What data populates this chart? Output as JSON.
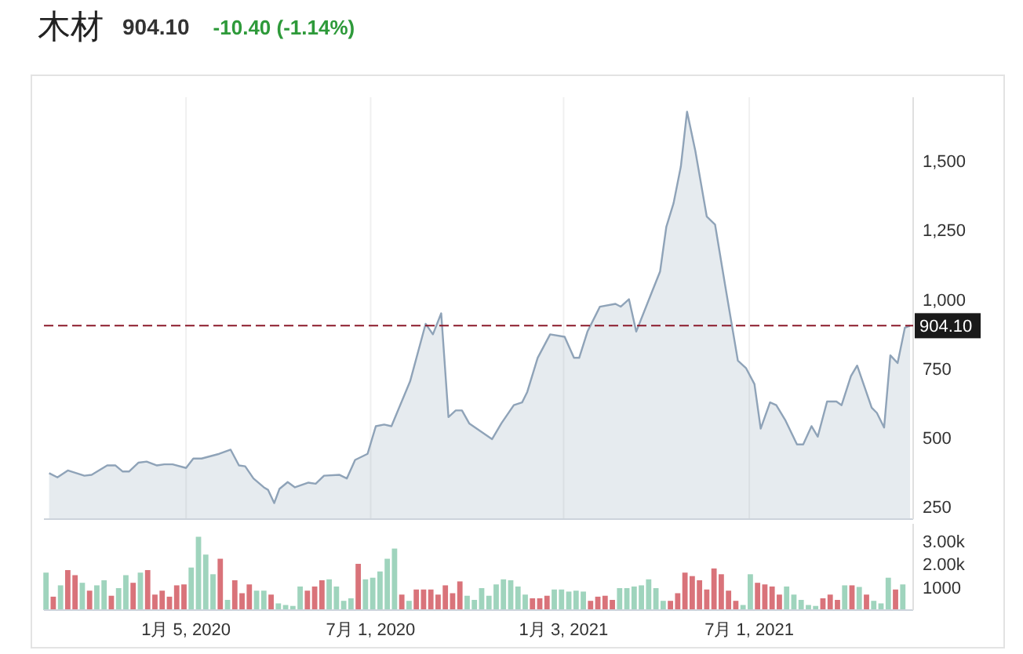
{
  "chart_data": [
    {
      "type": "area",
      "title": "木材",
      "subtitle": "904.10",
      "annotations": [
        "-10.40 (-1.14%)"
      ],
      "x": [
        "2019-08-26",
        "2019-09-03",
        "2019-09-13",
        "2019-09-29",
        "2019-10-06",
        "2019-10-21",
        "2019-10-29",
        "2019-11-05",
        "2019-11-11",
        "2019-11-20",
        "2019-11-28",
        "2019-12-08",
        "2019-12-15",
        "2019-12-23",
        "2020-01-05",
        "2020-01-12",
        "2020-01-20",
        "2020-02-06",
        "2020-02-17",
        "2020-02-25",
        "2020-03-02",
        "2020-03-10",
        "2020-03-20",
        "2020-03-24",
        "2020-03-30",
        "2020-04-04",
        "2020-04-12",
        "2020-04-19",
        "2020-05-02",
        "2020-05-09",
        "2020-05-17",
        "2020-06-01",
        "2020-06-08",
        "2020-06-16",
        "2020-06-28",
        "2020-07-06",
        "2020-07-14",
        "2020-07-21",
        "2020-08-08",
        "2020-08-23",
        "2020-08-30",
        "2020-09-07",
        "2020-09-14",
        "2020-09-21",
        "2020-09-27",
        "2020-10-04",
        "2020-10-26",
        "2020-11-04",
        "2020-11-16",
        "2020-11-24",
        "2020-11-29",
        "2020-12-09",
        "2020-12-21",
        "2021-01-04",
        "2021-01-13",
        "2021-01-18",
        "2021-01-26",
        "2021-02-07",
        "2021-02-22",
        "2021-02-27",
        "2021-03-07",
        "2021-03-14",
        "2021-03-29",
        "2021-04-06",
        "2021-04-12",
        "2021-04-19",
        "2021-04-26",
        "2021-05-02",
        "2021-05-10",
        "2021-05-21",
        "2021-05-29",
        "2021-06-08",
        "2021-06-20",
        "2021-06-28",
        "2021-07-06",
        "2021-07-12",
        "2021-07-21",
        "2021-07-27",
        "2021-08-05",
        "2021-08-16",
        "2021-08-22",
        "2021-08-30",
        "2021-09-05",
        "2021-09-14",
        "2021-09-23",
        "2021-09-28",
        "2021-10-07",
        "2021-10-13",
        "2021-10-27",
        "2021-11-01",
        "2021-11-08",
        "2021-11-14",
        "2021-11-21",
        "2021-11-28",
        "2021-12-03"
      ],
      "values": [
        371,
        356,
        381,
        362,
        365,
        399,
        399,
        377,
        377,
        409,
        413,
        399,
        403,
        403,
        390,
        424,
        424,
        441,
        456,
        399,
        396,
        352,
        320,
        311,
        263,
        314,
        339,
        320,
        337,
        333,
        362,
        365,
        352,
        419,
        441,
        541,
        547,
        541,
        703,
        911,
        873,
        949,
        574,
        598,
        598,
        551,
        494,
        551,
        617,
        627,
        665,
        788,
        873,
        864,
        788,
        788,
        883,
        973,
        983,
        973,
        1000,
        883,
        1025,
        1100,
        1261,
        1347,
        1479,
        1678,
        1536,
        1299,
        1270,
        1044,
        778,
        750,
        693,
        532,
        627,
        617,
        561,
        475,
        475,
        541,
        503,
        630,
        630,
        617,
        722,
        760,
        608,
        589,
        536,
        797,
        769,
        897,
        904
      ],
      "color": "#8fa3b8",
      "xlim": [
        "2019-08-21",
        "2021-12-06"
      ],
      "xticks": [
        {
          "value": "2020-01-05",
          "label": null
        },
        {
          "value": "2020-07-01",
          "label": null
        },
        {
          "value": "2021-01-03",
          "label": null
        },
        {
          "value": "2021-07-01",
          "label": null
        }
      ],
      "ylim": [
        205,
        1730
      ],
      "yticks": [
        250,
        500,
        750,
        {
          "value": 1000,
          "label": "1,000"
        },
        {
          "value": 1250,
          "label": "1,250"
        },
        {
          "value": 1500,
          "label": "1,500"
        }
      ],
      "ref_lines": [
        {
          "axis": "y",
          "value": 904.1,
          "label": "904.10",
          "color": "#8b1a2b",
          "line_style": "dashed"
        }
      ],
      "grid": "x",
      "tick_labels": "y"
    },
    {
      "type": "bar",
      "x": [
        "2019-08-23",
        "2019-08-30",
        "2019-09-06",
        "2019-09-13",
        "2019-09-20",
        "2019-09-27",
        "2019-10-04",
        "2019-10-11",
        "2019-10-18",
        "2019-10-25",
        "2019-11-01",
        "2019-11-08",
        "2019-11-15",
        "2019-11-22",
        "2019-11-29",
        "2019-12-06",
        "2019-12-13",
        "2019-12-20",
        "2019-12-27",
        "2020-01-03",
        "2020-01-10",
        "2020-01-17",
        "2020-01-24",
        "2020-01-31",
        "2020-02-07",
        "2020-02-14",
        "2020-02-21",
        "2020-02-28",
        "2020-03-06",
        "2020-03-13",
        "2020-03-20",
        "2020-03-27",
        "2020-04-03",
        "2020-04-10",
        "2020-04-17",
        "2020-04-24",
        "2020-05-01",
        "2020-05-08",
        "2020-05-15",
        "2020-05-22",
        "2020-05-29",
        "2020-06-05",
        "2020-06-12",
        "2020-06-19",
        "2020-06-26",
        "2020-07-03",
        "2020-07-10",
        "2020-07-17",
        "2020-07-24",
        "2020-07-31",
        "2020-08-07",
        "2020-08-14",
        "2020-08-21",
        "2020-08-28",
        "2020-09-04",
        "2020-09-11",
        "2020-09-18",
        "2020-09-25",
        "2020-10-02",
        "2020-10-09",
        "2020-10-16",
        "2020-10-23",
        "2020-10-30",
        "2020-11-06",
        "2020-11-13",
        "2020-11-20",
        "2020-11-27",
        "2020-12-04",
        "2020-12-11",
        "2020-12-18",
        "2020-12-25",
        "2021-01-01",
        "2021-01-08",
        "2021-01-15",
        "2021-01-22",
        "2021-01-29",
        "2021-02-05",
        "2021-02-12",
        "2021-02-19",
        "2021-02-26",
        "2021-03-05",
        "2021-03-12",
        "2021-03-19",
        "2021-03-26",
        "2021-04-02",
        "2021-04-09",
        "2021-04-16",
        "2021-04-23",
        "2021-04-30",
        "2021-05-07",
        "2021-05-14",
        "2021-05-21",
        "2021-05-28",
        "2021-06-04",
        "2021-06-11",
        "2021-06-18",
        "2021-06-25",
        "2021-07-02",
        "2021-07-09",
        "2021-07-16",
        "2021-07-23",
        "2021-07-30",
        "2021-08-06",
        "2021-08-13",
        "2021-08-20",
        "2021-08-27",
        "2021-09-03",
        "2021-09-10",
        "2021-09-17",
        "2021-09-24",
        "2021-10-01",
        "2021-10-08",
        "2021-10-15",
        "2021-10-22",
        "2021-10-29",
        "2021-11-05",
        "2021-11-12",
        "2021-11-19",
        "2021-11-26"
      ],
      "values": [
        1620,
        580,
        1070,
        1730,
        1510,
        1180,
        840,
        1070,
        1290,
        620,
        950,
        1510,
        1180,
        1620,
        1730,
        670,
        840,
        580,
        1070,
        1110,
        1840,
        3170,
        2400,
        1550,
        2220,
        440,
        1290,
        730,
        1110,
        840,
        840,
        670,
        290,
        220,
        180,
        1020,
        840,
        1020,
        1290,
        1330,
        1020,
        400,
        510,
        2000,
        1330,
        1400,
        1670,
        2220,
        2660,
        670,
        400,
        890,
        890,
        890,
        670,
        1070,
        730,
        1240,
        620,
        440,
        950,
        620,
        1110,
        1330,
        1290,
        1020,
        670,
        510,
        510,
        620,
        890,
        890,
        800,
        840,
        800,
        400,
        580,
        620,
        440,
        950,
        950,
        1020,
        1070,
        1330,
        950,
        400,
        400,
        730,
        1620,
        1470,
        1290,
        890,
        1800,
        1550,
        840,
        400,
        220,
        1550,
        1180,
        1110,
        1020,
        670,
        1020,
        670,
        440,
        220,
        180,
        510,
        670,
        440,
        1070,
        1070,
        1000,
        670,
        400,
        290,
        1400,
        890,
        1110
      ],
      "colors": [
        "#9fd4bd",
        "#d9737a",
        "#9fd4bd",
        "#d9737a",
        "#d9737a",
        "#9fd4bd",
        "#d9737a",
        "#9fd4bd",
        "#9fd4bd",
        "#d9737a",
        "#9fd4bd",
        "#9fd4bd",
        "#d9737a",
        "#9fd4bd",
        "#d9737a",
        "#d9737a",
        "#d9737a",
        "#d9737a",
        "#d9737a",
        "#d9737a",
        "#9fd4bd",
        "#9fd4bd",
        "#9fd4bd",
        "#9fd4bd",
        "#d9737a",
        "#9fd4bd",
        "#d9737a",
        "#d9737a",
        "#d9737a",
        "#9fd4bd",
        "#9fd4bd",
        "#d9737a",
        "#9fd4bd",
        "#9fd4bd",
        "#9fd4bd",
        "#9fd4bd",
        "#d9737a",
        "#d9737a",
        "#d9737a",
        "#9fd4bd",
        "#9fd4bd",
        "#9fd4bd",
        "#9fd4bd",
        "#d9737a",
        "#9fd4bd",
        "#9fd4bd",
        "#9fd4bd",
        "#9fd4bd",
        "#9fd4bd",
        "#d9737a",
        "#9fd4bd",
        "#d9737a",
        "#d9737a",
        "#d9737a",
        "#d9737a",
        "#d9737a",
        "#d9737a",
        "#d9737a",
        "#9fd4bd",
        "#9fd4bd",
        "#9fd4bd",
        "#9fd4bd",
        "#9fd4bd",
        "#9fd4bd",
        "#9fd4bd",
        "#9fd4bd",
        "#9fd4bd",
        "#d9737a",
        "#d9737a",
        "#d9737a",
        "#9fd4bd",
        "#9fd4bd",
        "#9fd4bd",
        "#9fd4bd",
        "#9fd4bd",
        "#d9737a",
        "#d9737a",
        "#d9737a",
        "#d9737a",
        "#9fd4bd",
        "#9fd4bd",
        "#9fd4bd",
        "#9fd4bd",
        "#9fd4bd",
        "#9fd4bd",
        "#9fd4bd",
        "#d9737a",
        "#d9737a",
        "#d9737a",
        "#d9737a",
        "#d9737a",
        "#d9737a",
        "#d9737a",
        "#d9737a",
        "#d9737a",
        "#d9737a",
        "#9fd4bd",
        "#9fd4bd",
        "#d9737a",
        "#d9737a",
        "#d9737a",
        "#d9737a",
        "#9fd4bd",
        "#9fd4bd",
        "#9fd4bd",
        "#9fd4bd",
        "#9fd4bd",
        "#d9737a",
        "#d9737a",
        "#d9737a",
        "#9fd4bd",
        "#d9737a",
        "#9fd4bd",
        "#d9737a",
        "#9fd4bd",
        "#9fd4bd",
        "#9fd4bd",
        "#d9737a",
        "#9fd4bd"
      ],
      "xlim": [
        "2019-08-21",
        "2021-12-06"
      ],
      "xticks": [
        {
          "value": "2020-01-05",
          "label": "1月 5, 2020"
        },
        {
          "value": "2020-07-01",
          "label": "7月 1, 2020"
        },
        {
          "value": "2021-01-03",
          "label": "1月 3, 2021"
        },
        {
          "value": "2021-07-01",
          "label": "7月 1, 2021"
        }
      ],
      "ylim": [
        0,
        3730
      ],
      "yticks": [
        1000,
        {
          "value": 2000,
          "label": "2.00k"
        },
        {
          "value": 3000,
          "label": "3.00k"
        }
      ]
    }
  ]
}
